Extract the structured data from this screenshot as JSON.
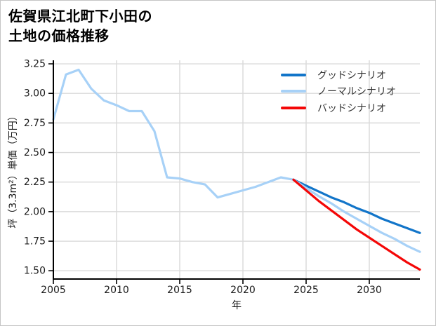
{
  "title": {
    "line1": "佐賀県江北町下小田の",
    "line2": "土地の価格推移"
  },
  "colors": {
    "good": "#1275c9",
    "normal": "#a7d1f7",
    "history": "#a7d1f7",
    "bad": "#f40707",
    "grid": "#d9d9d9",
    "axis": "#000000",
    "tick_text": "#1a1a1a",
    "legend_text": "#333333"
  },
  "legend": {
    "items": [
      {
        "id": "good",
        "label": "グッドシナリオ"
      },
      {
        "id": "normal",
        "label": "ノーマルシナリオ"
      },
      {
        "id": "bad",
        "label": "バッドシナリオ"
      }
    ]
  },
  "chart_data": {
    "type": "line",
    "title": "佐賀県江北町下小田の土地の価格推移",
    "xlabel": "年",
    "ylabel": "坪（3.3m²）単価（万円）",
    "xlim": [
      2005,
      2034
    ],
    "ylim": [
      1.43,
      3.28
    ],
    "x_ticks": [
      2005,
      2010,
      2015,
      2020,
      2025,
      2030
    ],
    "y_ticks": [
      1.5,
      1.75,
      2.0,
      2.25,
      2.5,
      2.75,
      3.0,
      3.25
    ],
    "grid": true,
    "legend_position": "upper right",
    "series": [
      {
        "id": "history",
        "color_key": "history",
        "x": [
          2005,
          2006,
          2007,
          2008,
          2009,
          2010,
          2011,
          2012,
          2013,
          2014,
          2015,
          2016,
          2017,
          2018,
          2019,
          2020,
          2021,
          2022,
          2023,
          2024
        ],
        "y": [
          2.78,
          3.16,
          3.2,
          3.04,
          2.94,
          2.9,
          2.85,
          2.85,
          2.68,
          2.29,
          2.28,
          2.25,
          2.23,
          2.12,
          2.15,
          2.18,
          2.21,
          2.25,
          2.29,
          2.27
        ]
      },
      {
        "id": "good",
        "color_key": "good",
        "x": [
          2024,
          2025,
          2026,
          2027,
          2028,
          2029,
          2030,
          2031,
          2032,
          2033,
          2034
        ],
        "y": [
          2.27,
          2.22,
          2.17,
          2.12,
          2.08,
          2.03,
          1.99,
          1.94,
          1.9,
          1.86,
          1.82
        ]
      },
      {
        "id": "normal",
        "color_key": "normal",
        "x": [
          2024,
          2025,
          2026,
          2027,
          2028,
          2029,
          2030,
          2031,
          2032,
          2033,
          2034
        ],
        "y": [
          2.27,
          2.2,
          2.13,
          2.07,
          2.0,
          1.94,
          1.88,
          1.82,
          1.77,
          1.71,
          1.66
        ]
      },
      {
        "id": "bad",
        "color_key": "bad",
        "x": [
          2024,
          2025,
          2026,
          2027,
          2028,
          2029,
          2030,
          2031,
          2032,
          2033,
          2034
        ],
        "y": [
          2.27,
          2.18,
          2.09,
          2.01,
          1.93,
          1.85,
          1.78,
          1.71,
          1.64,
          1.57,
          1.51
        ]
      }
    ]
  }
}
